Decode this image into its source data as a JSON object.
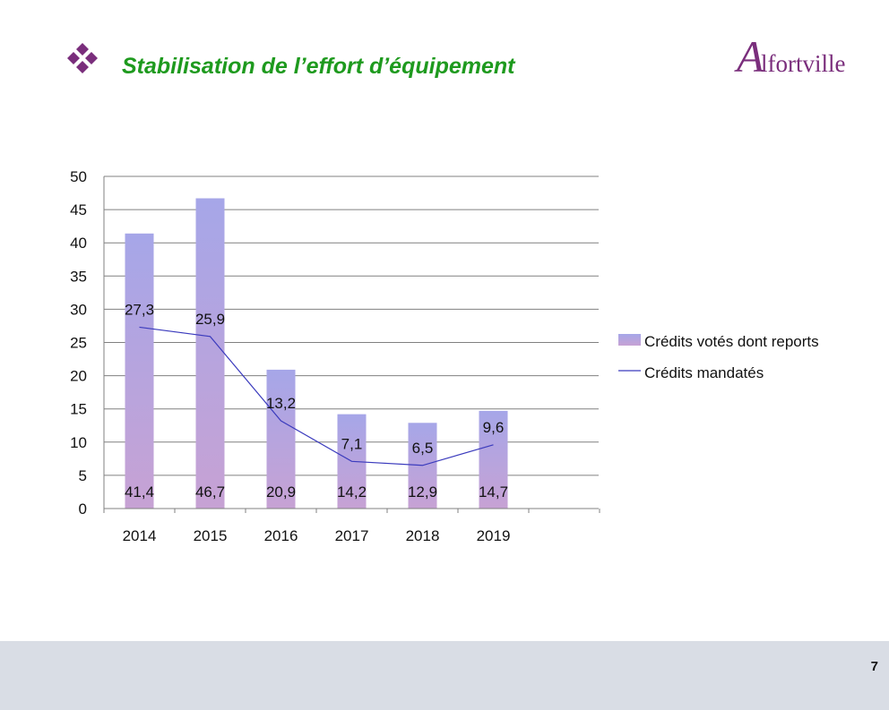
{
  "slide": {
    "title": "Stabilisation de l’effort d’équipement",
    "bullet_icon": "four-diamonds-icon",
    "logo_initial": "A",
    "logo_text": "lfortville",
    "page_number": "7"
  },
  "colors": {
    "title": "#1e9a1e",
    "bullet": "#7a2e7c",
    "bar_top": "#a6a6e8",
    "bar_bottom": "#c7a2d4",
    "line": "#3b3bbd",
    "grid": "#808080",
    "footer": "#d9dde5"
  },
  "chart_data": {
    "type": "bar",
    "categories": [
      "2014",
      "2015",
      "2016",
      "2017",
      "2018",
      "2019"
    ],
    "ylim": [
      0,
      50
    ],
    "yticks": [
      "0",
      "5",
      "10",
      "15",
      "20",
      "25",
      "30",
      "35",
      "40",
      "45",
      "50"
    ],
    "grid": true,
    "legend_position": "right",
    "series": [
      {
        "name": "Crédits votés dont reports",
        "type": "bar",
        "values": [
          41.4,
          46.7,
          20.9,
          14.2,
          12.9,
          14.7
        ],
        "labels": [
          "41,4",
          "46,7",
          "20,9",
          "14,2",
          "12,9",
          "14,7"
        ]
      },
      {
        "name": "Crédits mandatés",
        "type": "line",
        "values": [
          27.3,
          25.9,
          13.2,
          7.1,
          6.5,
          9.6
        ],
        "labels": [
          "27,3",
          "25,9",
          "13,2",
          "7,1",
          "6,5",
          "9,6"
        ]
      }
    ]
  }
}
